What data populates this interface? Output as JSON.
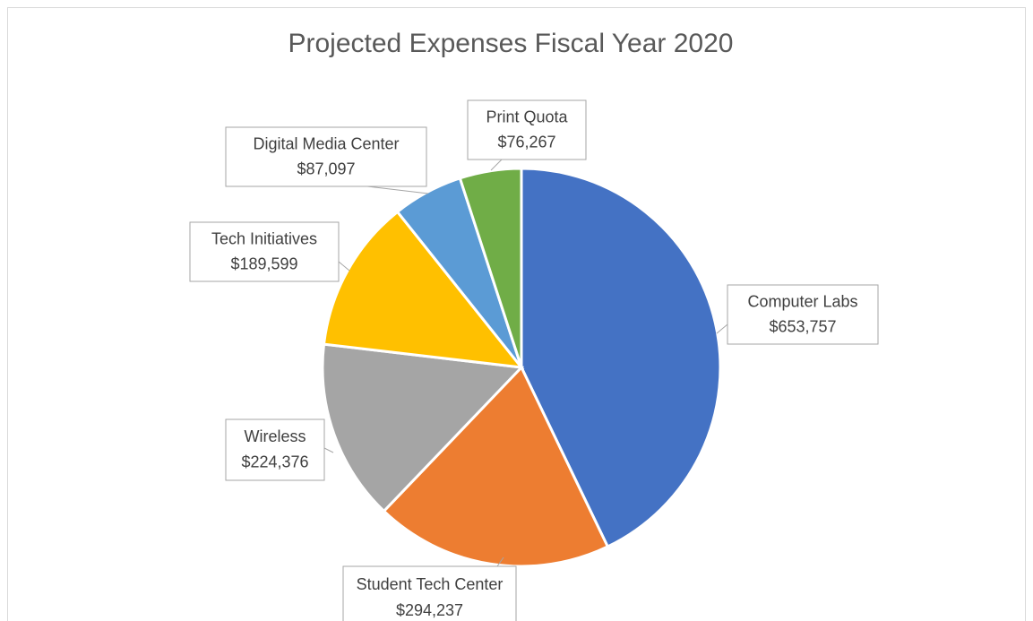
{
  "chart_data": {
    "type": "pie",
    "title": "Projected Expenses Fiscal Year 2020",
    "categories": [
      "Computer Labs",
      "Student Tech Center",
      "Wireless",
      "Tech Initiatives",
      "Digital Media Center",
      "Print Quota"
    ],
    "values": [
      653757,
      294237,
      224376,
      189599,
      87097,
      76267
    ],
    "value_labels": [
      "$653,757",
      "$294,237",
      "$224,376",
      "$189,599",
      "$87,097",
      "$76,267"
    ],
    "colors": [
      "#4472c4",
      "#ed7d31",
      "#a5a5a5",
      "#ffc000",
      "#5b9bd5",
      "#70ad47"
    ]
  }
}
